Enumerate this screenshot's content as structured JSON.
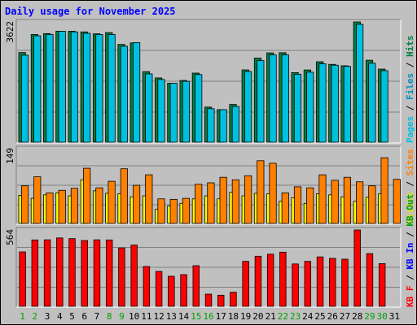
{
  "chart_data": {
    "type": "bar",
    "title": "Daily usage for November 2025",
    "categories": [
      "1",
      "2",
      "3",
      "4",
      "5",
      "6",
      "7",
      "8",
      "9",
      "10",
      "11",
      "12",
      "13",
      "14",
      "15",
      "16",
      "17",
      "18",
      "19",
      "20",
      "21",
      "22",
      "23",
      "24",
      "25",
      "26",
      "27",
      "28",
      "29",
      "30",
      "31"
    ],
    "weekend_days": [
      1,
      2,
      8,
      9,
      15,
      16,
      22,
      23,
      29,
      30
    ],
    "panels": [
      {
        "max_label": "3622",
        "ylim": [
          0,
          3622
        ],
        "right_labels": [
          {
            "text": "Pages",
            "color": "#00c0e0"
          },
          {
            "text": " / ",
            "color": "#000000"
          },
          {
            "text": "Files",
            "color": "#0090c0"
          },
          {
            "text": " / ",
            "color": "#000000"
          },
          {
            "text": "Hits",
            "color": "#008040"
          }
        ],
        "series": [
          {
            "name": "Hits",
            "color": "#008040",
            "values": [
              2700,
              3244,
              3271,
              3341,
              3341,
              3322,
              3265,
              3301,
              2944,
              2990,
              2125,
              1936,
              1776,
              1860,
              2081,
              1057,
              979,
              1135,
              2178,
              2534,
              2690,
              2695,
              2095,
              2176,
              2423,
              2344,
              2302,
              3622,
              2469,
              2202,
              0
            ]
          },
          {
            "name": "Files",
            "color": "#00c0e0",
            "values": [
              2620,
              3204,
              3244,
              3341,
              3322,
              3281,
              3244,
              3244,
              2890,
              3000,
              2057,
              1887,
              1776,
              1833,
              2037,
              1008,
              979,
              1075,
              2130,
              2456,
              2629,
              2629,
              2047,
              2108,
              2361,
              2319,
              2284,
              3550,
              2378,
              2154,
              0
            ]
          }
        ]
      },
      {
        "max_label": "149",
        "ylim": [
          0,
          149
        ],
        "right_labels": [
          {
            "text": "Visits",
            "color": "#e0e000"
          },
          {
            "text": " / ",
            "color": "#000000"
          },
          {
            "text": "Sites",
            "color": "#ff8000"
          }
        ],
        "series": [
          {
            "name": "Visits",
            "color": "#ffff00",
            "values": [
              56,
              50,
              57,
              61,
              55,
              87,
              65,
              60,
              59,
              53,
              55,
              28,
              35,
              40,
              49,
              55,
              49,
              62,
              55,
              60,
              59,
              44,
              51,
              40,
              59,
              57,
              53,
              44,
              52,
              59,
              0
            ]
          },
          {
            "name": "Sites",
            "color": "#ff8000",
            "values": [
              75,
              93,
              61,
              66,
              70,
              110,
              71,
              84,
              109,
              76,
              97,
              49,
              48,
              50,
              78,
              81,
              92,
              87,
              95,
              125,
              120,
              61,
              73,
              71,
              97,
              86,
              92,
              83,
              75,
              131,
              88
            ]
          }
        ]
      },
      {
        "max_label": "564",
        "ylim": [
          0,
          564
        ],
        "right_labels": [
          {
            "text": "KB F",
            "color": "#ff0000"
          },
          {
            "text": " / ",
            "color": "#000000"
          },
          {
            "text": "KB In",
            "color": "#0000ff"
          },
          {
            "text": " / ",
            "color": "#000000"
          },
          {
            "text": "KB Out",
            "color": "#00a000"
          }
        ],
        "series": [
          {
            "name": "KB F",
            "color": "#ff0000",
            "values": [
              402,
              490,
              491,
              505,
              500,
              486,
              491,
              490,
              431,
              452,
              294,
              258,
              222,
              234,
              300,
              90,
              82,
              104,
              332,
              370,
              385,
              400,
              313,
              332,
              365,
              354,
              348,
              564,
              389,
              315,
              0
            ]
          }
        ]
      }
    ]
  },
  "colors": {
    "frame_bg": "#c0c0c0",
    "plot_bg": "#c0c0c0",
    "grid": "#808080",
    "title": "#0000ff",
    "weekday_label": "#0000ff",
    "weekend_label": "#00a000"
  }
}
